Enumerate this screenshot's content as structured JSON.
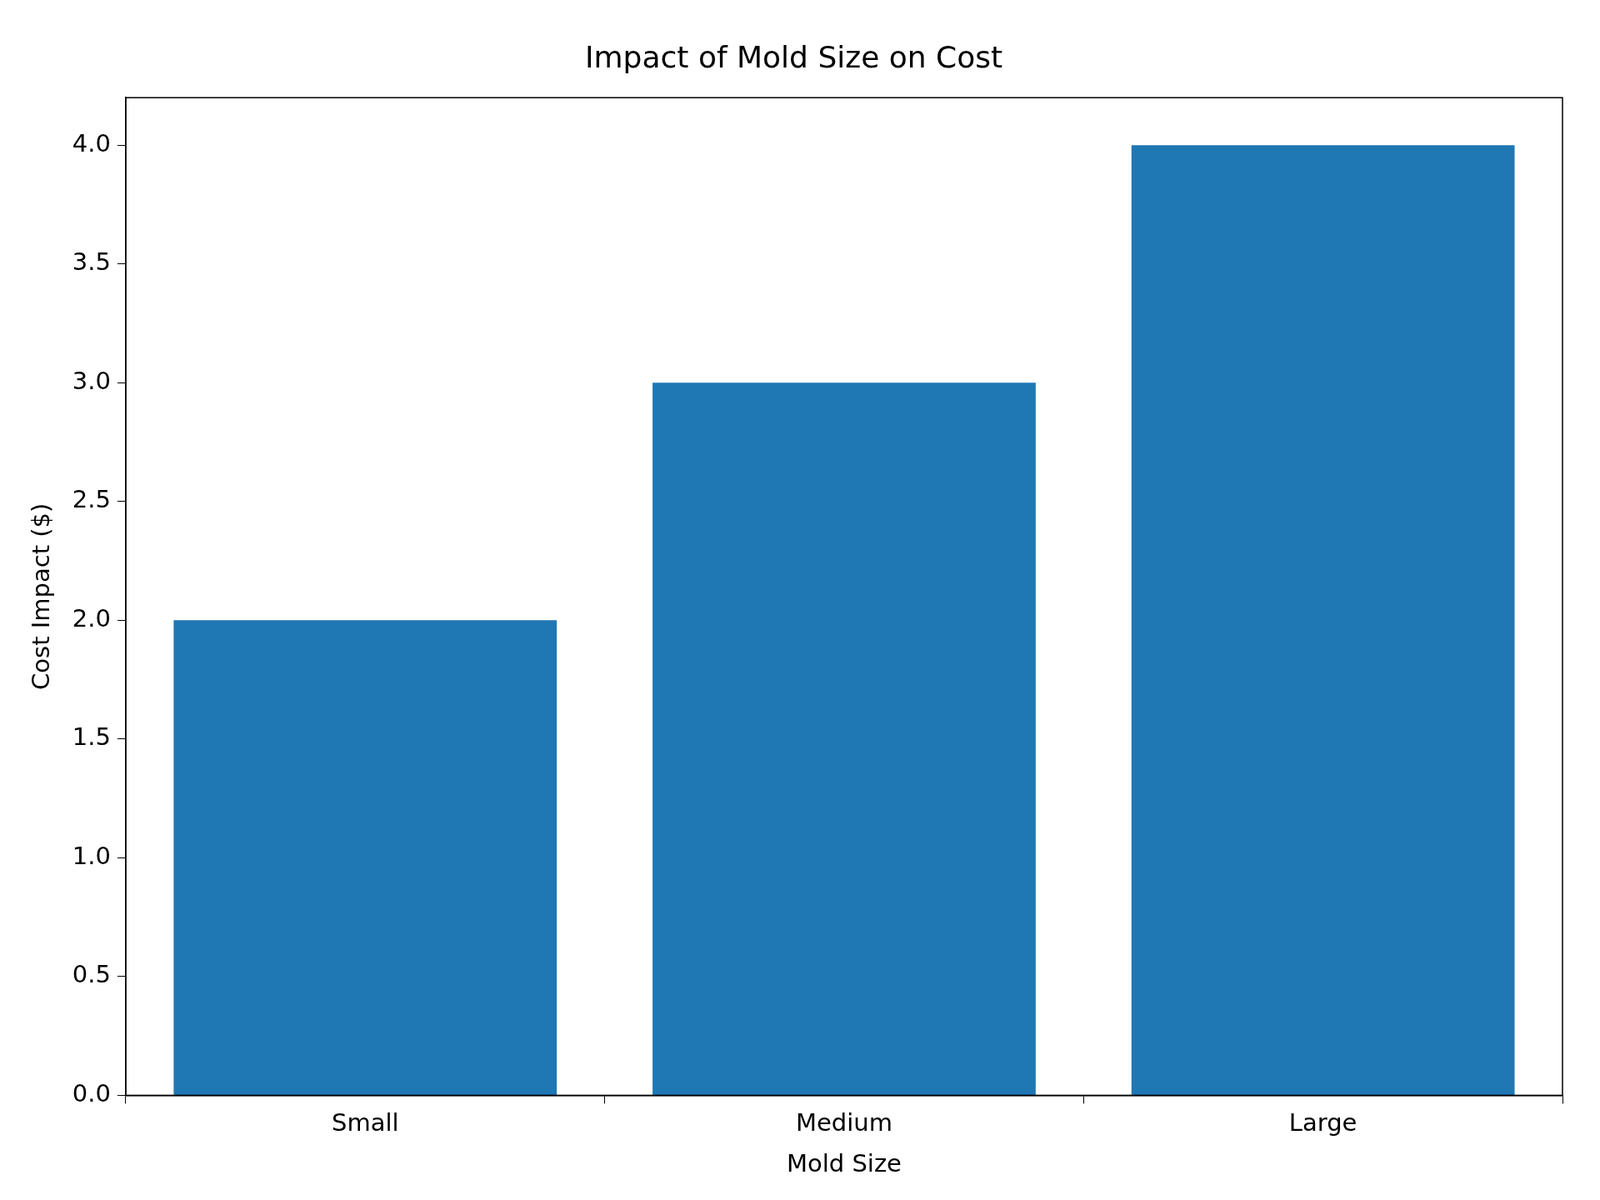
{
  "chart_data": {
    "type": "bar",
    "title": "Impact of Mold Size on Cost",
    "x_label": "Mold Size",
    "y_label": "Cost Impact ($)",
    "categories": [
      "Small",
      "Medium",
      "Large"
    ],
    "values": [
      2,
      3,
      4
    ],
    "color": "#1f77b4",
    "ylim": [
      0,
      4.2
    ],
    "yticks": [
      {
        "value": 0,
        "label": "0.0"
      },
      0.5,
      {
        "value": 1,
        "label": "1.0"
      },
      1.5,
      {
        "value": 2,
        "label": "2.0"
      },
      2.5,
      {
        "value": 3,
        "label": "3.0"
      },
      3.5,
      {
        "value": 4,
        "label": "4.0"
      }
    ],
    "grid": false
  }
}
